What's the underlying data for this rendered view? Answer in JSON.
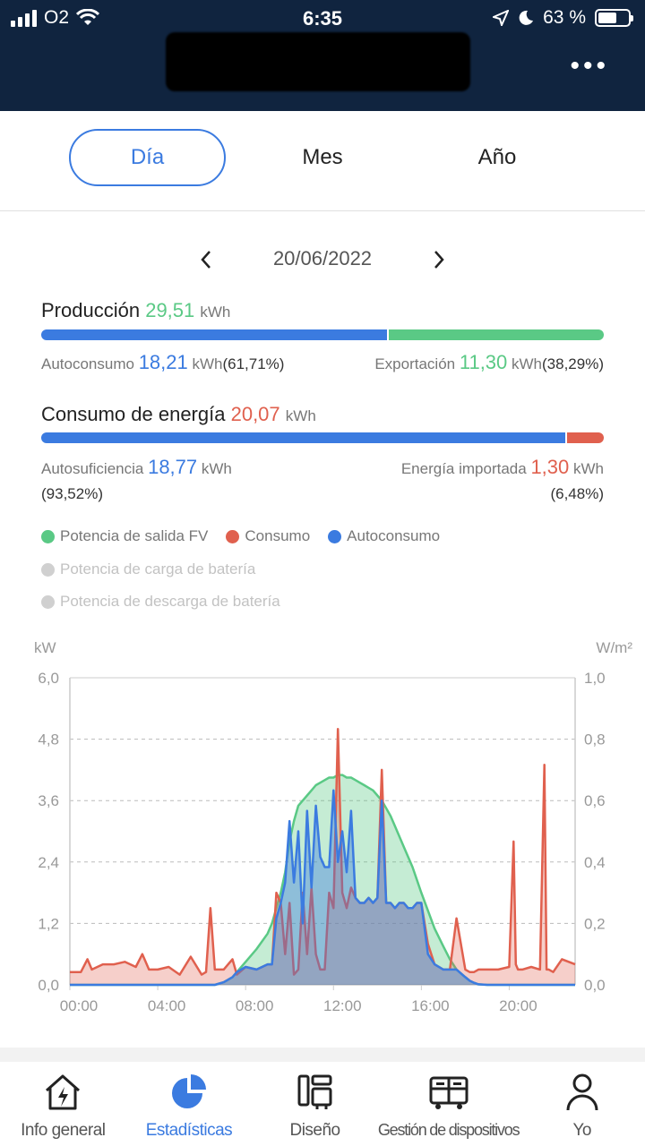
{
  "status": {
    "carrier": "O2",
    "time": "6:35",
    "battery": "63 %"
  },
  "header": {
    "menu_icon": "more-dots-icon"
  },
  "tabs": [
    {
      "label": "Día",
      "active": true
    },
    {
      "label": "Mes",
      "active": false
    },
    {
      "label": "Año",
      "active": false
    }
  ],
  "date": {
    "value": "20/06/2022",
    "prev": "‹",
    "next": "›"
  },
  "production": {
    "label": "Producción",
    "value": "29,51",
    "unit": "kWh",
    "self_label": "Autoconsumo",
    "self_value": "18,21",
    "self_unit": "kWh",
    "self_pct": "(61,71%)",
    "export_label": "Exportación",
    "export_value": "11,30",
    "export_unit": "kWh",
    "export_pct": "(38,29%)",
    "self_fraction": 0.6171
  },
  "consumption": {
    "label": "Consumo de energía",
    "value": "20,07",
    "unit": "kWh",
    "self_label": "Autosuficiencia",
    "self_value": "18,77",
    "self_unit": "kWh",
    "self_pct": "(93,52%)",
    "import_label": "Energía importada",
    "import_value": "1,30",
    "import_unit": "kWh",
    "import_pct": "(6,48%)",
    "self_fraction": 0.9352
  },
  "legend": {
    "pv": "Potencia de salida FV",
    "consumption": "Consumo",
    "self": "Autoconsumo",
    "charge": "Potencia de carga de batería",
    "discharge": "Potencia de descarga de batería"
  },
  "colors": {
    "green": "#5ac985",
    "red": "#e0604e",
    "blue": "#3b7be0",
    "grey": "#d0d0d0",
    "header": "#10243f"
  },
  "chart_data": {
    "type": "area",
    "ylabel_left": "kW",
    "ylabel_right": "W/m²",
    "ylim": [
      0,
      6
    ],
    "ylim_right": [
      0,
      1
    ],
    "yticks": [
      "0,0",
      "1,2",
      "2,4",
      "3,6",
      "4,8",
      "6,0"
    ],
    "yticks_right": [
      "0,0",
      "0,2",
      "0,4",
      "0,6",
      "0,8",
      "1,0"
    ],
    "xticks": [
      "00:00",
      "04:00",
      "08:00",
      "12:00",
      "16:00",
      "20:00"
    ],
    "grid": true,
    "x": [
      0,
      0.5,
      0.8,
      1,
      1.5,
      2,
      2.5,
      3,
      3.3,
      3.6,
      4,
      4.5,
      5,
      5.5,
      6,
      6.2,
      6.4,
      6.6,
      7,
      7.4,
      7.6,
      8,
      8.5,
      9,
      9.2,
      9.4,
      9.6,
      9.8,
      10,
      10.2,
      10.4,
      10.6,
      10.8,
      11,
      11.2,
      11.4,
      11.6,
      11.8,
      12,
      12.2,
      12.4,
      12.6,
      12.8,
      13,
      13.2,
      13.4,
      13.6,
      13.8,
      14,
      14.2,
      14.4,
      14.6,
      14.8,
      15,
      15.2,
      15.4,
      15.6,
      15.8,
      16,
      16.3,
      16.6,
      17,
      17.3,
      17.6,
      18,
      18.2,
      18.4,
      18.6,
      19,
      19.5,
      20,
      20.2,
      20.3,
      20.4,
      20.6,
      21,
      21.4,
      21.6,
      21.7,
      21.8,
      22,
      22.4,
      23
    ],
    "series": [
      {
        "name": "Potencia de salida FV",
        "values": [
          0,
          0,
          0,
          0,
          0,
          0,
          0,
          0,
          0,
          0,
          0,
          0,
          0,
          0,
          0,
          0,
          0,
          0,
          0.05,
          0.15,
          0.25,
          0.45,
          0.7,
          1.0,
          1.2,
          1.5,
          1.8,
          2.2,
          2.8,
          3.2,
          3.5,
          3.6,
          3.7,
          3.8,
          3.9,
          3.95,
          4.0,
          4.05,
          4.05,
          4.1,
          4.1,
          4.05,
          4.05,
          4.0,
          3.95,
          3.9,
          3.85,
          3.8,
          3.7,
          3.6,
          3.45,
          3.3,
          3.1,
          2.9,
          2.7,
          2.5,
          2.3,
          2.05,
          1.8,
          1.45,
          1.1,
          0.75,
          0.5,
          0.3,
          0.15,
          0.08,
          0.04,
          0.01,
          0,
          0,
          0,
          0,
          0,
          0,
          0,
          0,
          0,
          0,
          0,
          0,
          0,
          0,
          0
        ]
      },
      {
        "name": "Consumo",
        "values": [
          0.25,
          0.25,
          0.5,
          0.3,
          0.4,
          0.4,
          0.45,
          0.35,
          0.6,
          0.3,
          0.3,
          0.35,
          0.2,
          0.55,
          0.2,
          0.25,
          1.5,
          0.3,
          0.3,
          0.5,
          0.2,
          0.35,
          0.3,
          0.4,
          0.4,
          1.8,
          1.6,
          0.6,
          1.6,
          0.2,
          0.3,
          1.8,
          0.6,
          1.9,
          0.6,
          0.3,
          0.3,
          1.8,
          1.5,
          5.0,
          1.8,
          1.5,
          1.9,
          1.7,
          1.6,
          1.6,
          1.7,
          1.6,
          1.7,
          4.2,
          1.6,
          1.6,
          1.5,
          1.6,
          1.6,
          1.5,
          1.5,
          1.6,
          1.6,
          0.8,
          0.4,
          0.3,
          0.3,
          1.3,
          0.3,
          0.25,
          0.25,
          0.3,
          0.3,
          0.3,
          0.35,
          2.8,
          0.4,
          0.3,
          0.3,
          0.35,
          0.3,
          4.3,
          0.3,
          0.3,
          0.25,
          0.5,
          0.4
        ]
      },
      {
        "name": "Autoconsumo",
        "values": [
          0,
          0,
          0,
          0,
          0,
          0,
          0,
          0,
          0,
          0,
          0,
          0,
          0,
          0,
          0,
          0,
          0,
          0,
          0.05,
          0.15,
          0.25,
          0.35,
          0.3,
          0.4,
          0.4,
          1.3,
          1.6,
          2.0,
          3.2,
          2.0,
          3.0,
          1.2,
          3.4,
          1.9,
          3.5,
          2.5,
          2.3,
          2.3,
          3.8,
          2.4,
          3.0,
          2.2,
          3.4,
          1.7,
          1.6,
          1.6,
          1.7,
          1.6,
          1.7,
          3.6,
          1.6,
          1.6,
          1.5,
          1.6,
          1.6,
          1.5,
          1.5,
          1.6,
          1.6,
          0.6,
          0.4,
          0.3,
          0.3,
          0.3,
          0.15,
          0.08,
          0.04,
          0.01,
          0,
          0,
          0,
          0,
          0,
          0,
          0,
          0,
          0,
          0,
          0,
          0,
          0,
          0,
          0
        ]
      }
    ]
  },
  "nav": [
    {
      "label": "Info general",
      "icon": "home-lightning-icon",
      "active": false
    },
    {
      "label": "Estadísticas",
      "icon": "pie-chart-icon",
      "active": true
    },
    {
      "label": "Diseño",
      "icon": "layout-icon",
      "active": false
    },
    {
      "label": "Gestión de dispositivos",
      "icon": "devices-icon",
      "active": false
    },
    {
      "label": "Yo",
      "icon": "user-icon",
      "active": false
    }
  ]
}
